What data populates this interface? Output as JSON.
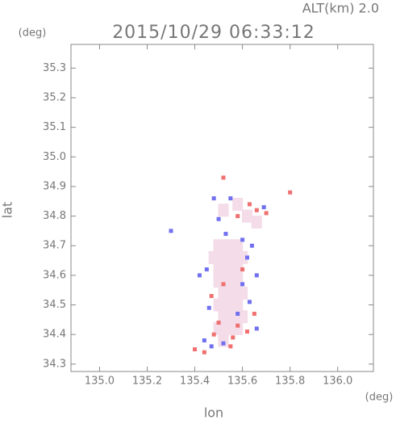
{
  "chart_data": {
    "type": "scatter",
    "title": "2015/10/29 06:33:12",
    "subtitle": "ALT(km) 2.0",
    "xlabel": "lon",
    "ylabel": "lat",
    "xunit": "(deg)",
    "yunit": "(deg)",
    "xlim": [
      134.88,
      136.15
    ],
    "ylim": [
      34.275,
      35.38
    ],
    "xticks": [
      {
        "value": 135.0,
        "label": "135.0"
      },
      135.2,
      135.4,
      135.6,
      135.8,
      {
        "value": 136.0,
        "label": "136.0"
      }
    ],
    "yticks": [
      34.3,
      34.4,
      34.5,
      34.6,
      34.7,
      34.8,
      34.9,
      {
        "value": 35.0,
        "label": "35.0"
      },
      35.1,
      35.2,
      35.3
    ],
    "series": [
      {
        "color": "#f4dce8",
        "x": [
          135.5,
          135.54,
          135.58,
          135.48,
          135.52,
          135.56,
          135.6,
          135.5,
          135.54,
          135.58,
          135.5,
          135.54,
          135.58,
          135.52,
          135.56,
          135.6,
          135.5,
          135.54,
          135.58,
          135.52,
          135.56,
          135.6,
          135.5,
          135.54,
          135.58,
          135.52,
          135.58,
          135.62,
          135.66,
          135.52
        ],
        "y": [
          34.7,
          34.7,
          34.7,
          34.66,
          34.66,
          34.66,
          34.66,
          34.62,
          34.62,
          34.62,
          34.58,
          34.58,
          34.58,
          34.54,
          34.54,
          34.54,
          34.5,
          34.5,
          34.5,
          34.46,
          34.46,
          34.46,
          34.42,
          34.42,
          34.42,
          34.38,
          34.84,
          34.8,
          34.78,
          34.82
        ]
      },
      {
        "color": "#7070f0",
        "x": [
          135.48,
          135.53,
          135.6,
          135.62,
          135.45,
          135.42,
          135.6,
          135.66,
          135.63,
          135.46,
          135.58,
          135.44,
          135.47,
          135.52,
          135.66,
          135.69,
          135.55,
          135.3,
          135.64,
          135.5
        ],
        "y": [
          34.86,
          34.74,
          34.72,
          34.66,
          34.62,
          34.6,
          34.57,
          34.6,
          34.51,
          34.49,
          34.47,
          34.38,
          34.36,
          34.37,
          34.42,
          34.83,
          34.86,
          34.75,
          34.7,
          34.79
        ]
      },
      {
        "color": "#f07070",
        "x": [
          135.52,
          135.63,
          135.66,
          135.8,
          135.58,
          135.4,
          135.48,
          135.5,
          135.58,
          135.62,
          135.55,
          135.65,
          135.52,
          135.6,
          135.47,
          135.7,
          135.56,
          135.44
        ],
        "y": [
          34.93,
          34.84,
          34.82,
          34.88,
          34.8,
          34.35,
          34.4,
          34.44,
          34.43,
          34.41,
          34.36,
          34.47,
          34.57,
          34.62,
          34.53,
          34.81,
          34.39,
          34.34
        ]
      }
    ]
  }
}
